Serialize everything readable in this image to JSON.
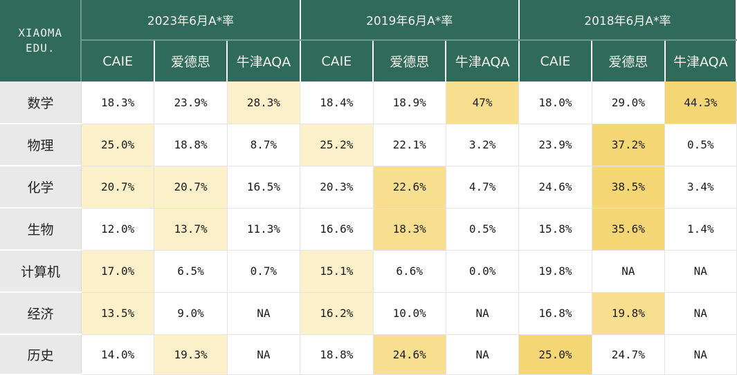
{
  "brand": {
    "line1": "XIAOMA",
    "line2": "EDU."
  },
  "groups": [
    {
      "title": "2023年6月A*率"
    },
    {
      "title": "2019年6月A*率"
    },
    {
      "title": "2018年6月A*率"
    }
  ],
  "boards": [
    "CAIE",
    "爱德思",
    "牛津AQA",
    "CAIE",
    "爱德思",
    "牛津AQA",
    "CAIE",
    "爱德思",
    "牛津AQA"
  ],
  "rows": [
    {
      "subject": "数学",
      "values": [
        "18.3%",
        "23.9%",
        "28.3%",
        "18.4%",
        "18.9%",
        "47%",
        "18.0%",
        "29.0%",
        "44.3%"
      ]
    },
    {
      "subject": "物理",
      "values": [
        "25.0%",
        "18.8%",
        "8.7%",
        "25.2%",
        "22.1%",
        "3.2%",
        "23.9%",
        "37.2%",
        "0.5%"
      ]
    },
    {
      "subject": "化学",
      "values": [
        "20.7%",
        "20.7%",
        "16.5%",
        "20.3%",
        "22.6%",
        "4.7%",
        "24.6%",
        "38.5%",
        "3.4%"
      ]
    },
    {
      "subject": "生物",
      "values": [
        "12.0%",
        "13.7%",
        "11.3%",
        "16.6%",
        "18.3%",
        "0.5%",
        "15.8%",
        "35.6%",
        "1.4%"
      ]
    },
    {
      "subject": "计算机",
      "values": [
        "17.0%",
        "6.5%",
        "0.7%",
        "15.1%",
        "6.6%",
        "0.0%",
        "19.8%",
        "NA",
        "NA"
      ]
    },
    {
      "subject": "经济",
      "values": [
        "13.5%",
        "9.0%",
        "NA",
        "16.2%",
        "10.0%",
        "NA",
        "16.8%",
        "19.8%",
        "NA"
      ]
    },
    {
      "subject": "历史",
      "values": [
        "14.0%",
        "19.3%",
        "NA",
        "18.8%",
        "24.6%",
        "NA",
        "25.0%",
        "24.7%",
        "NA"
      ]
    }
  ],
  "highlights": [
    [
      "none",
      "none",
      "light",
      "none",
      "none",
      "mid",
      "none",
      "none",
      "strong"
    ],
    [
      "light",
      "none",
      "none",
      "light",
      "none",
      "none",
      "none",
      "strong",
      "none"
    ],
    [
      "light",
      "light",
      "none",
      "none",
      "mid",
      "none",
      "none",
      "strong",
      "none"
    ],
    [
      "none",
      "light",
      "none",
      "none",
      "mid",
      "none",
      "none",
      "strong",
      "none"
    ],
    [
      "light",
      "none",
      "none",
      "light",
      "none",
      "none",
      "none",
      "none",
      "none"
    ],
    [
      "light",
      "none",
      "none",
      "light",
      "none",
      "none",
      "none",
      "mid",
      "none"
    ],
    [
      "none",
      "light",
      "none",
      "none",
      "mid",
      "none",
      "strong",
      "none",
      "none"
    ]
  ],
  "colors": {
    "header_bg": "#2f6a5b",
    "subject_bg": "#e9e9e9",
    "highlight_light": "#fbf0c9",
    "highlight_mid": "#f8df8f",
    "highlight_strong": "#f4d675"
  }
}
